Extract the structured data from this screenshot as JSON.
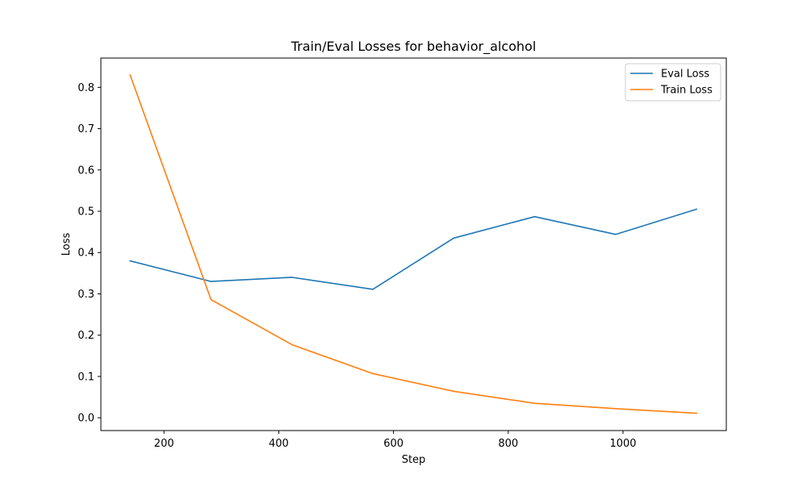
{
  "chart_data": {
    "type": "line",
    "title": "Train/Eval Losses for behavior_alcohol",
    "xlabel": "Step",
    "ylabel": "Loss",
    "xlim": [
      90,
      1180
    ],
    "ylim": [
      -0.031,
      0.871
    ],
    "xticks": [
      200,
      400,
      600,
      800,
      1000
    ],
    "xtick_labels": [
      "200",
      "400",
      "600",
      "800",
      "1000"
    ],
    "yticks": [
      0.0,
      0.1,
      0.2,
      0.3,
      0.4,
      0.5,
      0.6,
      0.7,
      0.8
    ],
    "ytick_labels": [
      "0.0",
      "0.1",
      "0.2",
      "0.3",
      "0.4",
      "0.5",
      "0.6",
      "0.7",
      "0.8"
    ],
    "grid": false,
    "legend_position": "top-right",
    "series": [
      {
        "name": "Eval Loss",
        "color": "#1f77b4",
        "x": [
          141,
          282,
          423,
          564,
          705,
          846,
          987,
          1128
        ],
        "y": [
          0.38,
          0.33,
          0.34,
          0.311,
          0.435,
          0.487,
          0.444,
          0.505
        ]
      },
      {
        "name": "Train Loss",
        "color": "#ff7f0e",
        "x": [
          141,
          282,
          423,
          564,
          705,
          846,
          987,
          1128
        ],
        "y": [
          0.83,
          0.286,
          0.177,
          0.107,
          0.064,
          0.035,
          0.022,
          0.011
        ]
      }
    ]
  }
}
